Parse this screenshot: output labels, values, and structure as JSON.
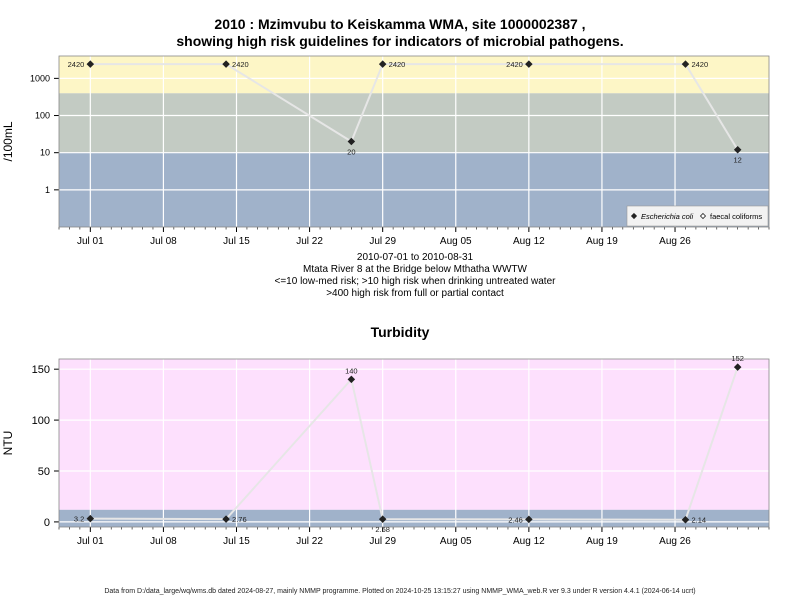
{
  "chart_data": [
    {
      "type": "scatter",
      "title_line1": "2010 : Mzimvubu to Keiskamma WMA, site 1000002387 ,",
      "title_line2": "showing high risk guidelines for indicators of microbial pathogens.",
      "ylabel": "/100mL",
      "yscale": "log",
      "ylim": [
        0.1,
        4000
      ],
      "yticks": [
        "1",
        "10",
        "100",
        "1000"
      ],
      "xticks": [
        "Jul 01",
        "Jul 08",
        "Jul 15",
        "Jul 22",
        "Jul 29",
        "Aug 05",
        "Aug 12",
        "Aug 19",
        "Aug 26"
      ],
      "xlim": [
        "2010-06-28",
        "2010-09-04"
      ],
      "bands": [
        {
          "from": 0.1,
          "to": 10,
          "color": "#a0b2ca"
        },
        {
          "from": 10,
          "to": 400,
          "color": "#c3cbc3"
        },
        {
          "from": 400,
          "to": 4000,
          "color": "#fdf6c6"
        }
      ],
      "series": [
        {
          "name": "Escherichia coli",
          "marker": "filled-diamond",
          "points": [
            {
              "x": "2010-07-01",
              "y": 2420,
              "label": "2420",
              "label_pos": "left"
            },
            {
              "x": "2010-07-14",
              "y": 2420,
              "label": "2420",
              "label_pos": "right"
            },
            {
              "x": "2010-07-26",
              "y": 20,
              "label": "20",
              "label_pos": "below"
            },
            {
              "x": "2010-07-29",
              "y": 2420,
              "label": "2420",
              "label_pos": "right"
            },
            {
              "x": "2010-08-12",
              "y": 2420,
              "label": "2420",
              "label_pos": "left"
            },
            {
              "x": "2010-08-27",
              "y": 2420,
              "label": "2420",
              "label_pos": "right"
            },
            {
              "x": "2010-09-01",
              "y": 12,
              "label": "12",
              "label_pos": "below"
            }
          ]
        },
        {
          "name": "faecal coliforms",
          "marker": "open-diamond",
          "points": []
        }
      ],
      "legend": "bottom-right",
      "notes": [
        "2010-07-01 to 2010-08-31",
        "Mtata River 8 at the Bridge below Mthatha WWTW",
        "<=10 low-med risk; >10 high risk when drinking untreated water",
        ">400 high risk from full or partial contact"
      ]
    },
    {
      "type": "scatter",
      "title": "Turbidity",
      "ylabel": "NTU",
      "ylim": [
        -5,
        160
      ],
      "yticks": [
        "0",
        "50",
        "100",
        "150"
      ],
      "xticks": [
        "Jul 01",
        "Jul 08",
        "Jul 15",
        "Jul 22",
        "Jul 29",
        "Aug 05",
        "Aug 12",
        "Aug 19",
        "Aug 26"
      ],
      "xlim": [
        "2010-06-28",
        "2010-09-04"
      ],
      "bands": [
        {
          "from": -5,
          "to": 12,
          "color": "#a0b2ca"
        },
        {
          "from": 12,
          "to": 160,
          "color": "#fde0fd"
        }
      ],
      "series": [
        {
          "name": "",
          "marker": "filled-diamond",
          "points": [
            {
              "x": "2010-07-01",
              "y": 3.2,
              "label": "3.2",
              "label_pos": "left"
            },
            {
              "x": "2010-07-14",
              "y": 2.76,
              "label": "2.76",
              "label_pos": "right"
            },
            {
              "x": "2010-07-26",
              "y": 140,
              "label": "140",
              "label_pos": "above"
            },
            {
              "x": "2010-07-29",
              "y": 2.68,
              "label": "2.68",
              "label_pos": "below"
            },
            {
              "x": "2010-08-12",
              "y": 2.46,
              "label": "2.46",
              "label_pos": "left"
            },
            {
              "x": "2010-08-27",
              "y": 2.14,
              "label": "2.14",
              "label_pos": "right"
            },
            {
              "x": "2010-09-01",
              "y": 152,
              "label": "152",
              "label_pos": "above"
            }
          ]
        }
      ]
    }
  ],
  "footer": "Data from D:/data_large/wq/wms.db dated 2024-08-27, mainly NMMP programme. Plotted on 2024-10-25 13:15:27 using NMMP_WMA_web.R ver 9.3 under R version 4.4.1 (2024-06-14 ucrt)"
}
